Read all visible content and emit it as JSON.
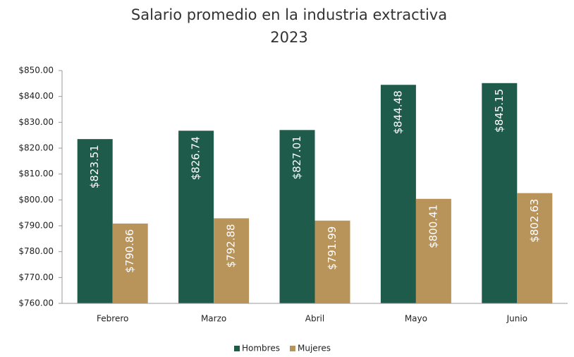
{
  "chart_data": {
    "type": "bar",
    "title": "Salario promedio en la industria extractiva",
    "subtitle": "2023",
    "categories": [
      "Febrero",
      "Marzo",
      "Abril",
      "Mayo",
      "Junio"
    ],
    "series": [
      {
        "name": "Hombres",
        "color": "#1e5b4b",
        "values": [
          823.51,
          826.74,
          827.01,
          844.48,
          845.15
        ],
        "value_labels": [
          "$823.51",
          "$826.74",
          "$827.01",
          "$844.48",
          "$845.15"
        ]
      },
      {
        "name": "Mujeres",
        "color": "#b8935a",
        "values": [
          790.86,
          792.88,
          791.99,
          800.41,
          802.63
        ],
        "value_labels": [
          "$790.86",
          "$792.88",
          "$791.99",
          "$800.41",
          "$802.63"
        ]
      }
    ],
    "ylim": [
      760,
      850
    ],
    "yticks": [
      {
        "value": 760,
        "label": "$760.00"
      },
      {
        "value": 770,
        "label": "$770.00"
      },
      {
        "value": 780,
        "label": "$780.00"
      },
      {
        "value": 790,
        "label": "$790.00"
      },
      {
        "value": 800,
        "label": "$800.00"
      },
      {
        "value": 810,
        "label": "$810.00"
      },
      {
        "value": 820,
        "label": "$820.00"
      },
      {
        "value": 830,
        "label": "$830.00"
      },
      {
        "value": 840,
        "label": "$840.00"
      },
      {
        "value": 850,
        "label": "$850.00"
      }
    ],
    "grid": false,
    "legend": "bottom"
  }
}
